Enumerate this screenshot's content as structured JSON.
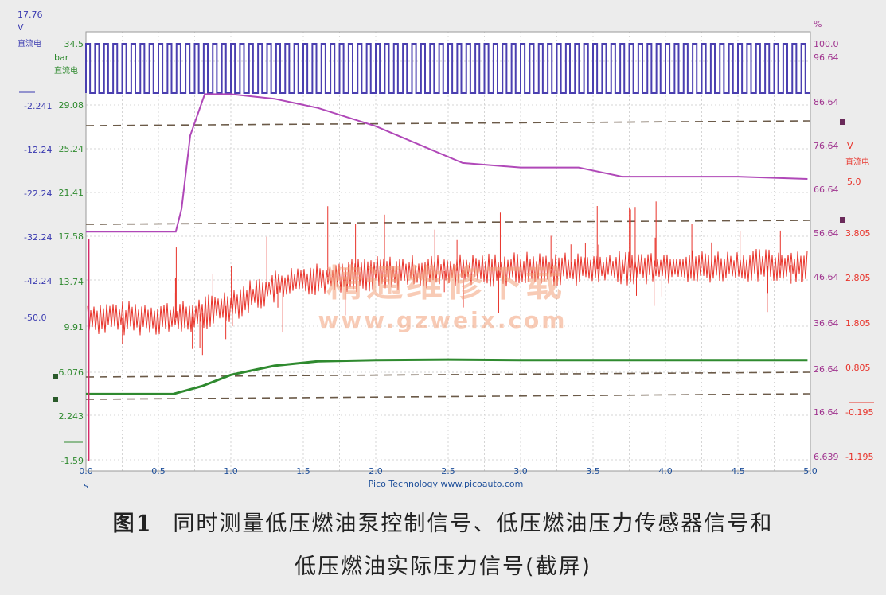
{
  "chart_data": {
    "type": "line",
    "vendor_label": "Pico Technology  www.picoauto.com",
    "x_axis": {
      "unit": "s",
      "ticks": [
        "0.0",
        "0.5",
        "1.0",
        "1.5",
        "2.0",
        "2.5",
        "3.0",
        "3.5",
        "4.0",
        "4.5",
        "5.0"
      ],
      "range": [
        0,
        5.0
      ]
    },
    "axes": [
      {
        "id": "A",
        "color": "#3a3ab0",
        "unit": "V",
        "coupling": "直流电",
        "top": "17.76",
        "ticks": [
          "-2.241",
          "-12.24",
          "-22.24",
          "-32.24",
          "-42.24",
          "-50.0"
        ]
      },
      {
        "id": "B",
        "color": "#2f8a2f",
        "unit": "bar",
        "coupling": "直流电",
        "ticks": [
          "34.5",
          "29.08",
          "25.24",
          "21.41",
          "17.58",
          "13.74",
          "9.91",
          "6.076",
          "2.243",
          "-1.59"
        ]
      },
      {
        "id": "C",
        "color": "#a0348f",
        "unit": "%",
        "ticks": [
          "100.0",
          "96.64",
          "86.64",
          "76.64",
          "66.64",
          "56.64",
          "46.64",
          "36.64",
          "26.64",
          "16.64",
          "6.639"
        ]
      },
      {
        "id": "D",
        "color": "#e8332a",
        "unit": "V",
        "coupling": "直流电",
        "top": "5.0",
        "ticks": [
          "3.805",
          "2.805",
          "1.805",
          "0.805",
          "-0.195",
          "-1.195"
        ]
      }
    ],
    "series": [
      {
        "axis": "A",
        "color": "#4a3fb0",
        "kind": "square-wave",
        "x_range": [
          0,
          5.0
        ],
        "high": "34.5",
        "low": "29.08",
        "pulses": 80
      },
      {
        "axis": "C",
        "color": "#b048b8",
        "kind": "line",
        "x": [
          0,
          0.62,
          0.66,
          0.72,
          0.82,
          1.0,
          1.3,
          1.6,
          2.0,
          2.3,
          2.6,
          3.0,
          3.4,
          3.7,
          4.0,
          4.5,
          4.98
        ],
        "y": [
          59,
          59,
          64,
          80,
          89,
          89,
          88,
          86,
          82,
          78,
          74,
          73,
          73,
          71,
          71,
          71,
          70.5
        ]
      },
      {
        "axis": "D",
        "color": "#e8332a",
        "kind": "noisy-line",
        "x": [
          0,
          0.7,
          1.0,
          1.3,
          1.6,
          2.0,
          2.5,
          3.0,
          3.5,
          4.0,
          4.5,
          5.0
        ],
        "y": [
          1.9,
          1.9,
          2.2,
          2.6,
          2.8,
          2.9,
          2.95,
          3.0,
          3.0,
          3.05,
          3.05,
          3.1
        ]
      },
      {
        "axis": "B",
        "color": "#2f8a2f",
        "kind": "line",
        "x": [
          0,
          0.6,
          0.8,
          1.0,
          1.3,
          1.6,
          2.0,
          2.5,
          3.0,
          3.5,
          4.0,
          4.5,
          4.98
        ],
        "y": [
          3.5,
          3.5,
          4.2,
          5.2,
          6.0,
          6.4,
          6.5,
          6.55,
          6.5,
          6.5,
          6.5,
          6.5,
          6.5
        ]
      }
    ]
  },
  "watermark": {
    "line1": "精通维修下载",
    "line2": "www.gzweix.com"
  },
  "caption": {
    "figure_label": "图1",
    "line1": "同时测量低压燃油泵控制信号、低压燃油压力传感器信号和",
    "line2": "低压燃油实际压力信号(截屏)"
  }
}
